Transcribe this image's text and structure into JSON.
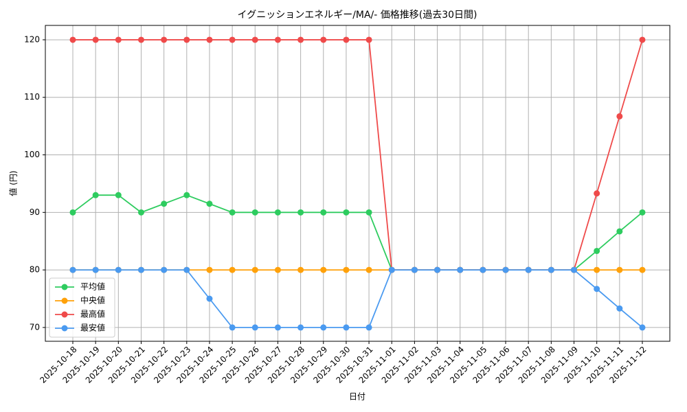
{
  "chart_data": {
    "type": "line",
    "title": "イグニッションエネルギー/MA/- 価格推移(過去30日間)",
    "x_label": "日付",
    "y_label": "値 (円)",
    "categories": [
      "2025-10-18",
      "2025-10-19",
      "2025-10-20",
      "2025-10-21",
      "2025-10-22",
      "2025-10-23",
      "2025-10-24",
      "2025-10-25",
      "2025-10-26",
      "2025-10-27",
      "2025-10-28",
      "2025-10-29",
      "2025-10-30",
      "2025-10-31",
      "2025-11-01",
      "2025-11-02",
      "2025-11-03",
      "2025-11-04",
      "2025-11-05",
      "2025-11-06",
      "2025-11-07",
      "2025-11-08",
      "2025-11-09",
      "2025-11-10",
      "2025-11-11",
      "2025-11-12"
    ],
    "series": [
      {
        "name": "平均値",
        "color": "#2ecc5f",
        "values": [
          90,
          93,
          93,
          90,
          91.5,
          93,
          91.5,
          90,
          90,
          90,
          90,
          90,
          90,
          90,
          80,
          80,
          80,
          80,
          80,
          80,
          80,
          80,
          80,
          83.3,
          86.7,
          90
        ]
      },
      {
        "name": "中央値",
        "color": "#ffa10a",
        "values": [
          80,
          80,
          80,
          80,
          80,
          80,
          80,
          80,
          80,
          80,
          80,
          80,
          80,
          80,
          80,
          80,
          80,
          80,
          80,
          80,
          80,
          80,
          80,
          80,
          80,
          80
        ]
      },
      {
        "name": "最高値",
        "color": "#ef4a4a",
        "values": [
          120,
          120,
          120,
          120,
          120,
          120,
          120,
          120,
          120,
          120,
          120,
          120,
          120,
          120,
          80,
          80,
          80,
          80,
          80,
          80,
          80,
          80,
          80,
          93.3,
          106.7,
          120
        ]
      },
      {
        "name": "最安値",
        "color": "#4a9af0",
        "values": [
          80,
          80,
          80,
          80,
          80,
          80,
          75,
          70,
          70,
          70,
          70,
          70,
          70,
          70,
          80,
          80,
          80,
          80,
          80,
          80,
          80,
          80,
          80,
          76.7,
          73.3,
          70
        ]
      }
    ],
    "ylim": [
      67.6,
      122.5
    ],
    "yticks": [
      70,
      80,
      90,
      100,
      110,
      120
    ],
    "grid": true,
    "legend": "lower left"
  }
}
